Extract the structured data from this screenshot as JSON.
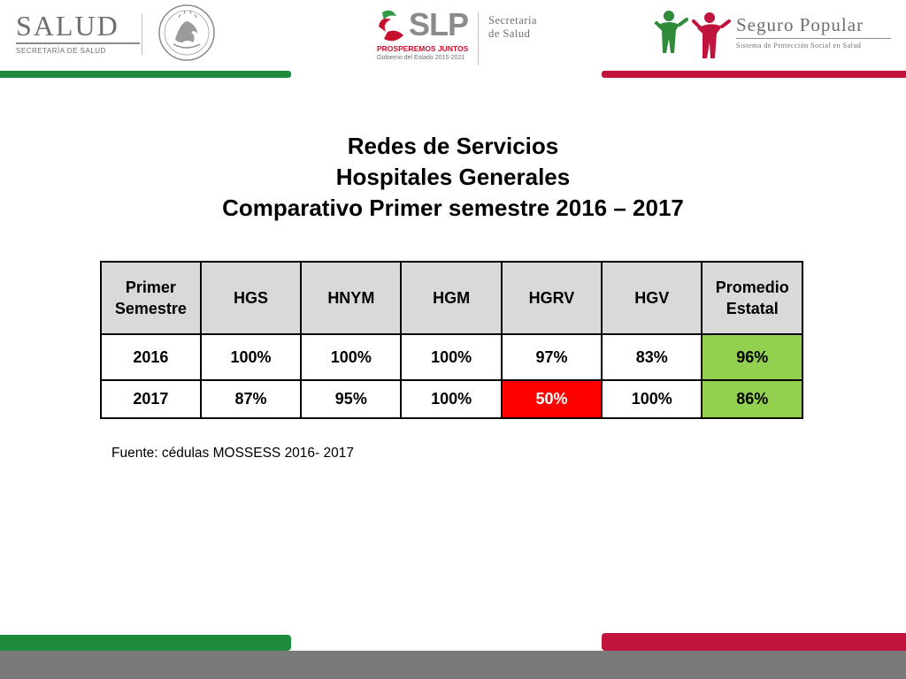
{
  "header": {
    "salud_logo": {
      "name": "SALUD",
      "subtitle": "SECRETARÍA DE SALUD"
    },
    "slp_logo": {
      "name": "SLP",
      "tagline": "PROSPEREMOS JUNTOS",
      "government": "Gobierno del Estado 2015-2021",
      "dept_line1": "Secretaría",
      "dept_line2": "de Salud"
    },
    "seguro_popular_logo": {
      "name": "Seguro Popular",
      "subtitle": "Sistema de Protección Social en Salud"
    }
  },
  "title": {
    "line1": "Redes de Servicios",
    "line2": "Hospitales Generales",
    "line3": "Comparativo Primer semestre  2016 – 2017"
  },
  "table": {
    "headers": [
      "Primer Semestre",
      "HGS",
      "HNYM",
      "HGM",
      "HGRV",
      "HGV",
      "Promedio Estatal"
    ],
    "rows": [
      [
        "2016",
        "100%",
        "100%",
        "100%",
        "97%",
        "83%",
        "96%"
      ],
      [
        "2017",
        "87%",
        "95%",
        "100%",
        "50%",
        "100%",
        "86%"
      ]
    ]
  },
  "source": "Fuente: cédulas MOSSESS 2016- 2017",
  "colors": {
    "green_bar": "#1e8a3c",
    "red_bar": "#c0143c",
    "highlight_green": "#92d050",
    "highlight_red": "#ff0000",
    "header_gray": "#d9d9d9"
  }
}
